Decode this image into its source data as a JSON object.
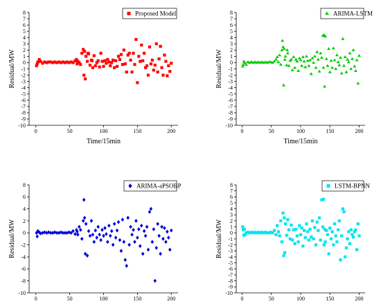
{
  "chart_data": [
    {
      "type": "scatter",
      "xlabel": "Time/15min",
      "ylabel": "Residual/MW",
      "xlim": [
        -10,
        210
      ],
      "ylim": [
        -10,
        8
      ],
      "xticks": [
        0,
        50,
        100,
        150,
        200
      ],
      "yticks": [
        -10,
        -9,
        -8,
        -7,
        -6,
        -5,
        -4,
        -3,
        -2,
        -1,
        0,
        1,
        2,
        3,
        4,
        5,
        6,
        7,
        8
      ],
      "legend_position": "top-right",
      "marker": "square",
      "series": [
        {
          "name": "Proposed Model",
          "color": "#ff0000",
          "marker": "square",
          "x": [
            1,
            2,
            3,
            5,
            7,
            10,
            13,
            16,
            19,
            22,
            25,
            28,
            31,
            34,
            37,
            40,
            43,
            46,
            49,
            52,
            55,
            58,
            60,
            61,
            62,
            64,
            66,
            68,
            70,
            71,
            72,
            73,
            74,
            76,
            77,
            78,
            80,
            82,
            83,
            84,
            86,
            88,
            90,
            92,
            94,
            96,
            98,
            100,
            102,
            104,
            106,
            108,
            110,
            112,
            114,
            116,
            118,
            120,
            122,
            124,
            126,
            128,
            130,
            132,
            134,
            136,
            138,
            140,
            142,
            144,
            146,
            148,
            150,
            152,
            154,
            156,
            158,
            160,
            162,
            164,
            166,
            168,
            170,
            172,
            174,
            176,
            178,
            180,
            182,
            184,
            186,
            188,
            190,
            192,
            194,
            196,
            198,
            200
          ],
          "y": [
            -0.5,
            -0.2,
            0.1,
            0.5,
            0.2,
            -0.1,
            0.1,
            0.0,
            0.1,
            0.1,
            0.0,
            0.1,
            0.0,
            0.1,
            0.0,
            0.1,
            0.0,
            0.1,
            0.0,
            0.1,
            0.0,
            0.3,
            0.5,
            -0.2,
            0.2,
            0.0,
            -0.3,
            1.5,
            2.1,
            -2.0,
            1.8,
            -2.6,
            1.0,
            0.2,
            1.5,
            1.4,
            -0.4,
            0.4,
            0.3,
            -0.8,
            1.1,
            -0.5,
            0.0,
            0.3,
            -0.7,
            1.5,
            0.2,
            -0.6,
            0.3,
            -0.1,
            0.5,
            0.1,
            -0.5,
            0.0,
            0.4,
            -0.8,
            0.3,
            -0.6,
            1.0,
            0.5,
            1.3,
            -0.3,
            2.0,
            -0.2,
            -1.5,
            1.2,
            1.5,
            0.4,
            -1.5,
            1.5,
            -0.3,
            3.7,
            -3.2,
            1.0,
            0.2,
            2.8,
            0.3,
            1.5,
            -0.8,
            -0.5,
            -2.0,
            2.5,
            -0.2,
            0.4,
            -1.2,
            -0.4,
            3.0,
            -1.5,
            0.6,
            2.6,
            -0.8,
            -2.0,
            1.2,
            0.2,
            -2.1,
            -0.5,
            -1.4,
            -0.1
          ]
        }
      ]
    },
    {
      "type": "scatter",
      "xlabel": "Time/15min",
      "ylabel": "Residual/MW",
      "xlim": [
        -10,
        210
      ],
      "ylim": [
        -10,
        8
      ],
      "xticks": [
        0,
        50,
        100,
        150,
        200
      ],
      "yticks": [
        -10,
        -9,
        -8,
        -7,
        -6,
        -5,
        -4,
        -3,
        -2,
        -1,
        0,
        1,
        2,
        3,
        4,
        5,
        6,
        7,
        8
      ],
      "legend_position": "top-right",
      "marker": "triangle",
      "series": [
        {
          "name": "ARIMA-LSTM",
          "color": "#00cc00",
          "marker": "triangle",
          "x": [
            1,
            2,
            3,
            5,
            7,
            10,
            13,
            16,
            19,
            22,
            25,
            28,
            31,
            34,
            37,
            40,
            43,
            46,
            49,
            52,
            55,
            58,
            60,
            62,
            64,
            66,
            68,
            69,
            70,
            71,
            72,
            73,
            74,
            76,
            77,
            78,
            80,
            82,
            84,
            86,
            88,
            90,
            92,
            94,
            96,
            98,
            100,
            102,
            104,
            106,
            108,
            110,
            112,
            114,
            116,
            118,
            120,
            122,
            124,
            126,
            128,
            130,
            132,
            134,
            136,
            138,
            139,
            140,
            141,
            142,
            144,
            146,
            148,
            150,
            152,
            154,
            156,
            158,
            160,
            162,
            164,
            166,
            168,
            170,
            172,
            174,
            176,
            178,
            180,
            182,
            184,
            186,
            188,
            190,
            192,
            194,
            196,
            198,
            200
          ],
          "y": [
            -0.6,
            -0.3,
            0.2,
            0.0,
            -0.3,
            0.1,
            0.0,
            0.1,
            0.0,
            0.1,
            0.0,
            0.1,
            0.0,
            0.1,
            0.0,
            0.1,
            0.0,
            0.1,
            0.1,
            0.0,
            0.2,
            0.5,
            0.9,
            0.1,
            1.2,
            -0.3,
            2.0,
            3.5,
            2.5,
            -3.6,
            2.2,
            0.5,
            1.0,
            -0.4,
            2.0,
            1.5,
            -0.5,
            0.3,
            0.5,
            -1.2,
            0.9,
            -0.8,
            0.5,
            0.2,
            -1.3,
            0.7,
            0.4,
            -0.5,
            0.9,
            0.2,
            -0.7,
            1.0,
            0.3,
            -0.5,
            0.4,
            -1.8,
            0.7,
            0.0,
            1.0,
            -0.8,
            1.7,
            0.5,
            -1.4,
            1.5,
            0.8,
            4.3,
            -0.8,
            4.4,
            -3.8,
            4.2,
            0.6,
            -0.5,
            2.2,
            -1.5,
            0.3,
            -0.8,
            2.3,
            0.4,
            -1.0,
            1.2,
            0.1,
            -0.4,
            0.8,
            -1.7,
            3.8,
            -0.5,
            0.9,
            -1.5,
            0.5,
            0.1,
            1.5,
            -1.0,
            0.6,
            2.0,
            -0.6,
            -1.3,
            0.4,
            -3.3,
            1.1
          ]
        }
      ]
    },
    {
      "type": "scatter",
      "xlabel": "Time/15min",
      "ylabel": "Residual/MW",
      "xlim": [
        -10,
        210
      ],
      "ylim": [
        -10,
        8
      ],
      "xticks": [
        0,
        50,
        100,
        150,
        200
      ],
      "yticks": [
        -10,
        -8,
        -6,
        -4,
        -2,
        0,
        2,
        4,
        6,
        8
      ],
      "legend_position": "top-right",
      "marker": "diamond",
      "series": [
        {
          "name": "ARIMA-aPSOBP",
          "color": "#0000dd",
          "marker": "diamond",
          "x": [
            1,
            2,
            3,
            5,
            7,
            10,
            13,
            16,
            19,
            22,
            25,
            28,
            31,
            34,
            37,
            40,
            43,
            46,
            49,
            52,
            55,
            58,
            60,
            61,
            62,
            64,
            66,
            68,
            70,
            71,
            72,
            73,
            74,
            76,
            78,
            80,
            82,
            84,
            86,
            88,
            90,
            92,
            94,
            96,
            98,
            100,
            102,
            104,
            106,
            108,
            110,
            112,
            114,
            116,
            118,
            120,
            122,
            124,
            126,
            128,
            130,
            132,
            134,
            136,
            138,
            140,
            142,
            144,
            146,
            148,
            150,
            152,
            154,
            156,
            158,
            160,
            162,
            164,
            166,
            168,
            170,
            172,
            174,
            176,
            178,
            180,
            182,
            184,
            186,
            188,
            190,
            192,
            194,
            196,
            198,
            200
          ],
          "y": [
            0.0,
            -0.6,
            0.3,
            0.1,
            -0.1,
            0.0,
            0.1,
            0.0,
            0.1,
            0.0,
            0.0,
            0.1,
            0.0,
            0.0,
            0.1,
            0.0,
            0.0,
            0.0,
            0.1,
            0.0,
            0.3,
            -0.2,
            0.5,
            0.2,
            -0.3,
            1.0,
            0.5,
            -1.0,
            2.0,
            5.5,
            2.5,
            -3.5,
            1.5,
            -3.8,
            0.3,
            -0.5,
            2.0,
            -0.3,
            -1.5,
            0.4,
            -0.8,
            1.0,
            -0.3,
            -1.2,
            0.5,
            -0.5,
            0.8,
            -0.2,
            -1.5,
            1.2,
            -0.5,
            0.3,
            -2.0,
            1.5,
            -0.8,
            0.4,
            1.8,
            -1.2,
            -3.0,
            2.2,
            -1.5,
            -4.5,
            -5.5,
            2.5,
            -2.0,
            1.0,
            -0.3,
            0.5,
            -1.5,
            2.0,
            -0.8,
            0.6,
            -2.2,
            1.2,
            -3.5,
            0.3,
            -0.5,
            1.0,
            -2.8,
            3.5,
            4.0,
            -1.5,
            0.6,
            -8.0,
            -2.5,
            1.5,
            -0.5,
            -3.5,
            1.0,
            -1.0,
            0.8,
            -1.5,
            0.2,
            -0.8,
            -2.8,
            0.4
          ]
        }
      ]
    },
    {
      "type": "scatter",
      "xlabel": "Time/15min",
      "ylabel": "Residual/MW",
      "xlim": [
        -10,
        210
      ],
      "ylim": [
        -10,
        8
      ],
      "xticks": [
        0,
        50,
        100,
        150,
        200
      ],
      "yticks": [
        -10,
        -9,
        -8,
        -7,
        -6,
        -5,
        -4,
        -3,
        -2,
        -1,
        0,
        1,
        2,
        3,
        4,
        5,
        6,
        7,
        8
      ],
      "legend_position": "top-right",
      "marker": "square",
      "series": [
        {
          "name": "LSTM-BPNN",
          "color": "#00e5ee",
          "marker": "square",
          "x": [
            1,
            2,
            3,
            4,
            5,
            7,
            10,
            13,
            16,
            19,
            22,
            25,
            28,
            31,
            34,
            37,
            40,
            43,
            46,
            49,
            52,
            55,
            58,
            60,
            62,
            64,
            66,
            68,
            70,
            71,
            72,
            73,
            74,
            76,
            78,
            80,
            82,
            84,
            86,
            88,
            90,
            92,
            94,
            96,
            98,
            100,
            102,
            104,
            106,
            108,
            110,
            112,
            114,
            116,
            118,
            120,
            122,
            124,
            126,
            128,
            130,
            132,
            134,
            136,
            138,
            139,
            140,
            141,
            142,
            144,
            146,
            148,
            150,
            152,
            154,
            156,
            158,
            160,
            162,
            164,
            166,
            168,
            170,
            172,
            174,
            176,
            178,
            180,
            182,
            184,
            186,
            188,
            190,
            192,
            194,
            196,
            198,
            200
          ],
          "y": [
            1.0,
            0.5,
            -0.4,
            0.6,
            -0.3,
            0.0,
            0.1,
            0.0,
            0.1,
            0.0,
            0.1,
            0.0,
            0.1,
            0.0,
            0.1,
            0.0,
            0.1,
            0.0,
            0.0,
            0.1,
            0.0,
            0.4,
            -0.3,
            1.2,
            0.2,
            -0.5,
            2.0,
            -1.5,
            3.3,
            -3.8,
            2.5,
            -3.3,
            1.5,
            -0.4,
            2.2,
            0.5,
            -1.0,
            1.3,
            -1.2,
            0.5,
            -1.8,
            0.6,
            -0.5,
            -1.5,
            1.2,
            -0.3,
            0.8,
            -2.2,
            0.4,
            -0.8,
            1.5,
            0.2,
            -1.2,
            0.6,
            -0.7,
            2.0,
            -1.0,
            0.9,
            -2.0,
            1.8,
            0.4,
            2.5,
            -1.2,
            5.5,
            1.0,
            5.6,
            -2.0,
            0.6,
            -1.5,
            0.4,
            -0.3,
            -3.5,
            0.8,
            -1.0,
            0.2,
            -2.0,
            1.5,
            -0.5,
            -1.5,
            0.5,
            2.0,
            -4.5,
            -0.5,
            4.0,
            3.5,
            -4.0,
            -2.5,
            -1.0,
            0.2,
            -1.8,
            0.5,
            -0.3,
            -0.7,
            0.2,
            0.5,
            -2.8,
            1.5,
            -0.5
          ]
        }
      ]
    }
  ]
}
